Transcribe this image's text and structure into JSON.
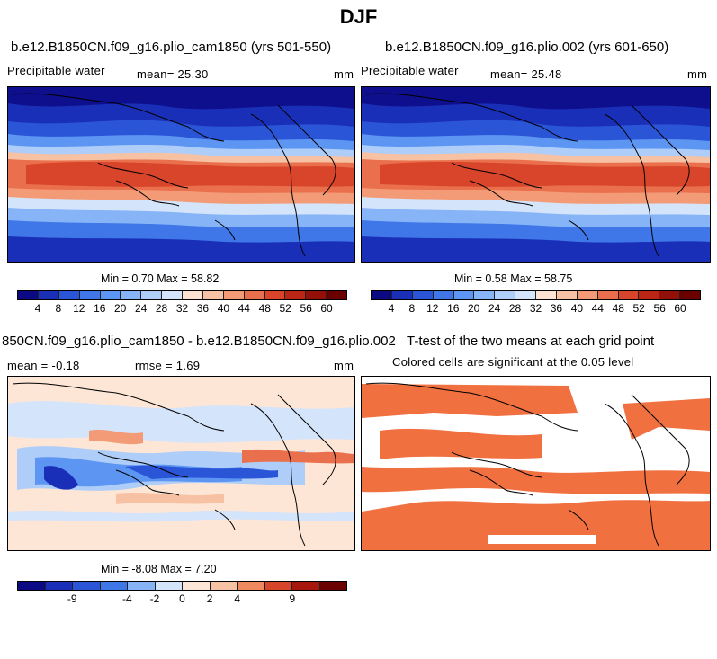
{
  "figure_title": "DJF",
  "panels": {
    "p1": {
      "title": "b.e12.B1850CN.f09_g16.plio_cam1850 (yrs 501-550)",
      "left_label": "Precipitable water",
      "mean_label": "mean=  25.30",
      "units": "mm",
      "minmax": "Min =   0.70 Max =  58.82"
    },
    "p2": {
      "title": "b.e12.B1850CN.f09_g16.plio.002 (yrs 601-650)",
      "left_label": "Precipitable water",
      "mean_label": "mean=  25.48",
      "units": "mm",
      "minmax": "Min =   0.58 Max =  58.75"
    },
    "p3": {
      "title": "850CN.f09_g16.plio_cam1850 - b.e12.B1850CN.f09_g16.plio.002",
      "left_label": "mean =  -0.18",
      "mean_label": "rmse =   1.69",
      "units": "mm",
      "minmax": "Min =  -8.08 Max =   7.20"
    },
    "p4": {
      "title": "T-test of the two means at each grid point",
      "subtitle": "Colored cells are significant at the 0.05 level"
    }
  },
  "colorbar_abs": {
    "ticks": [
      "4",
      "8",
      "12",
      "16",
      "20",
      "24",
      "28",
      "32",
      "36",
      "40",
      "44",
      "48",
      "52",
      "56",
      "60"
    ],
    "colors": [
      "#0c0a82",
      "#1a2fb8",
      "#2a55d6",
      "#3f76e8",
      "#5c95f2",
      "#86b4f6",
      "#aecdf8",
      "#d4e4fa",
      "#fbe2d2",
      "#f7c1a3",
      "#f39b76",
      "#ea6f4c",
      "#d8452a",
      "#bb2516",
      "#921008",
      "#6b0000"
    ]
  },
  "colorbar_diff": {
    "ticks": [
      "-9",
      "-4",
      "-2",
      "0",
      "2",
      "4",
      "9"
    ],
    "colors": [
      "#0c0a82",
      "#1a2fb8",
      "#2a55d6",
      "#3f76e8",
      "#86b4f6",
      "#d4e4fa",
      "#fde6d6",
      "#f7c1a3",
      "#ef8a60",
      "#d8452a",
      "#a8170b",
      "#6b0000"
    ]
  },
  "significance_color": "#f07040"
}
